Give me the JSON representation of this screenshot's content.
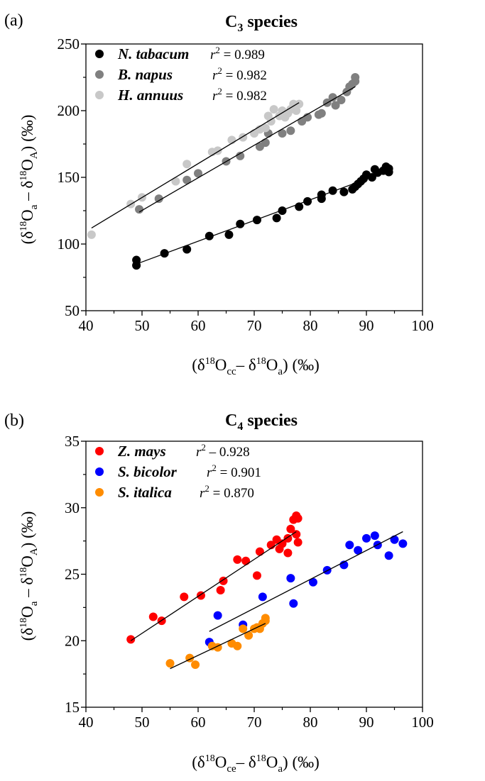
{
  "chart_data": [
    {
      "type": "scatter",
      "panel_label": "(a)",
      "title": "C3 species",
      "title_main": "C",
      "title_sub": "3",
      "title_rest": " species",
      "xlabel": "(δ18Occ– δ18Oa) (‰)",
      "ylabel": "(δ18Oa – δ18OA) (‰)",
      "xlim": [
        40,
        100
      ],
      "ylim": [
        50,
        250
      ],
      "xticks": [
        40,
        50,
        60,
        70,
        80,
        90,
        100
      ],
      "yticks": [
        50,
        100,
        150,
        200,
        250
      ],
      "grid": false,
      "legend_position": "top-left",
      "series": [
        {
          "name": "N. tabacum",
          "r2_label": "r2 = 0.989",
          "r2": "0.989",
          "color": "#000000",
          "fit": [
            [
              49,
              85
            ],
            [
              94,
              155
            ]
          ],
          "points": [
            [
              49,
              84
            ],
            [
              49,
              88
            ],
            [
              54,
              93
            ],
            [
              58,
              96
            ],
            [
              62,
              106
            ],
            [
              65.5,
              107
            ],
            [
              67.5,
              115
            ],
            [
              70.5,
              118
            ],
            [
              74,
              119.5
            ],
            [
              75,
              125
            ],
            [
              78,
              128
            ],
            [
              79.5,
              132
            ],
            [
              82,
              134
            ],
            [
              82,
              137
            ],
            [
              84,
              140
            ],
            [
              86,
              139
            ],
            [
              87.5,
              141
            ],
            [
              88,
              143
            ],
            [
              88.5,
              145
            ],
            [
              89,
              147
            ],
            [
              89.5,
              149
            ],
            [
              90,
              152
            ],
            [
              91,
              150
            ],
            [
              91.5,
              156
            ],
            [
              92,
              153.5
            ],
            [
              93,
              155
            ],
            [
              93.5,
              158
            ],
            [
              94,
              154
            ],
            [
              94,
              156.5
            ]
          ]
        },
        {
          "name": "B. napus",
          "r2_label": "r2 = 0.982",
          "r2": "0.982",
          "color": "#808080",
          "fit": [
            [
              49.5,
              124
            ],
            [
              88,
              218
            ]
          ],
          "points": [
            [
              49.5,
              126
            ],
            [
              53,
              134
            ],
            [
              58,
              148
            ],
            [
              60,
              153
            ],
            [
              65,
              162
            ],
            [
              67.5,
              166
            ],
            [
              71,
              173
            ],
            [
              72,
              176
            ],
            [
              72.5,
              183
            ],
            [
              75,
              183
            ],
            [
              76.5,
              185
            ],
            [
              78.5,
              192
            ],
            [
              79.5,
              195
            ],
            [
              81.5,
              197
            ],
            [
              82,
              198
            ],
            [
              83,
              206
            ],
            [
              84,
              210
            ],
            [
              84.5,
              204
            ],
            [
              85.5,
              208
            ],
            [
              86.5,
              214
            ],
            [
              87,
              218
            ],
            [
              87.5,
              220
            ],
            [
              88,
              222
            ],
            [
              88,
              225
            ]
          ]
        },
        {
          "name": "H. annuus",
          "r2_label": "r2 = 0.982",
          "r2": "0.982",
          "color": "#c8c8c8",
          "fit": [
            [
              41,
              112
            ],
            [
              78,
              206
            ]
          ],
          "points": [
            [
              41,
              107
            ],
            [
              48,
              130
            ],
            [
              50,
              135
            ],
            [
              56,
              147
            ],
            [
              58,
              160
            ],
            [
              62.5,
              169
            ],
            [
              63.5,
              170
            ],
            [
              66,
              178
            ],
            [
              68,
              180
            ],
            [
              70,
              183
            ],
            [
              71,
              186
            ],
            [
              72,
              187
            ],
            [
              72.5,
              196
            ],
            [
              73,
              192
            ],
            [
              73.5,
              201
            ],
            [
              74.5,
              196
            ],
            [
              75,
              200
            ],
            [
              75.5,
              195
            ],
            [
              76,
              198
            ],
            [
              76.5,
              201
            ],
            [
              77,
              205
            ],
            [
              77.5,
              200
            ],
            [
              78,
              205
            ]
          ]
        }
      ]
    },
    {
      "type": "scatter",
      "panel_label": "(b)",
      "title": "C4 species",
      "title_main": "C",
      "title_sub": "4",
      "title_rest": " species",
      "xlabel": "(δ18Oce– δ18Oa) (‰)",
      "ylabel": "(δ18Oa – δ18OA) (‰)",
      "xlim": [
        40,
        100
      ],
      "ylim": [
        15,
        35
      ],
      "xticks": [
        40,
        50,
        60,
        70,
        80,
        90,
        100
      ],
      "yticks": [
        15,
        20,
        25,
        30,
        35
      ],
      "grid": false,
      "legend_position": "top-left",
      "series": [
        {
          "name": "Z. mays",
          "r2_label": "r2 – 0.928",
          "r2": "0.928",
          "color": "#ff0000",
          "fit": [
            [
              48,
              20.0
            ],
            [
              77.5,
              28.2
            ]
          ],
          "points": [
            [
              48,
              20.1
            ],
            [
              52,
              21.8
            ],
            [
              53.5,
              21.5
            ],
            [
              57.5,
              23.3
            ],
            [
              60.5,
              23.4
            ],
            [
              64,
              23.8
            ],
            [
              64.5,
              24.5
            ],
            [
              67,
              26.1
            ],
            [
              68.5,
              26.0
            ],
            [
              70.5,
              24.9
            ],
            [
              71,
              26.7
            ],
            [
              73,
              27.2
            ],
            [
              74,
              27.6
            ],
            [
              74.5,
              26.9
            ],
            [
              75,
              27.3
            ],
            [
              76,
              27.7
            ],
            [
              76,
              26.6
            ],
            [
              76.5,
              28.4
            ],
            [
              77,
              29.1
            ],
            [
              77.5,
              29.4
            ],
            [
              77.5,
              28.0
            ],
            [
              77.8,
              27.4
            ],
            [
              77.8,
              29.2
            ]
          ]
        },
        {
          "name": "S. bicolor",
          "r2_label": "r2 = 0.901",
          "r2": "0.901",
          "color": "#0000ff",
          "fit": [
            [
              62,
              20.7
            ],
            [
              96.5,
              28.2
            ]
          ],
          "points": [
            [
              62,
              19.9
            ],
            [
              63.5,
              21.9
            ],
            [
              68,
              21.2
            ],
            [
              71.5,
              23.3
            ],
            [
              76.5,
              24.7
            ],
            [
              77,
              22.8
            ],
            [
              80.5,
              24.4
            ],
            [
              83,
              25.3
            ],
            [
              86,
              25.7
            ],
            [
              87,
              27.2
            ],
            [
              88.5,
              26.8
            ],
            [
              90,
              27.7
            ],
            [
              91.5,
              27.9
            ],
            [
              92,
              27.2
            ],
            [
              94,
              26.4
            ],
            [
              95,
              27.6
            ],
            [
              96.5,
              27.3
            ]
          ]
        },
        {
          "name": "S. italica",
          "r2_label": "r2 = 0.870",
          "r2": "0.870",
          "color": "#ff8c00",
          "fit": [
            [
              55,
              17.9
            ],
            [
              72,
              21.3
            ]
          ],
          "points": [
            [
              55,
              18.3
            ],
            [
              58.5,
              18.7
            ],
            [
              59.5,
              18.2
            ],
            [
              62.5,
              19.6
            ],
            [
              63.5,
              19.5
            ],
            [
              66,
              19.8
            ],
            [
              67,
              19.6
            ],
            [
              68,
              20.9
            ],
            [
              69,
              20.4
            ],
            [
              70,
              20.9
            ],
            [
              70.5,
              21.0
            ],
            [
              71,
              20.9
            ],
            [
              71.5,
              21.3
            ],
            [
              72,
              21.5
            ],
            [
              72,
              21.7
            ]
          ]
        }
      ]
    }
  ]
}
